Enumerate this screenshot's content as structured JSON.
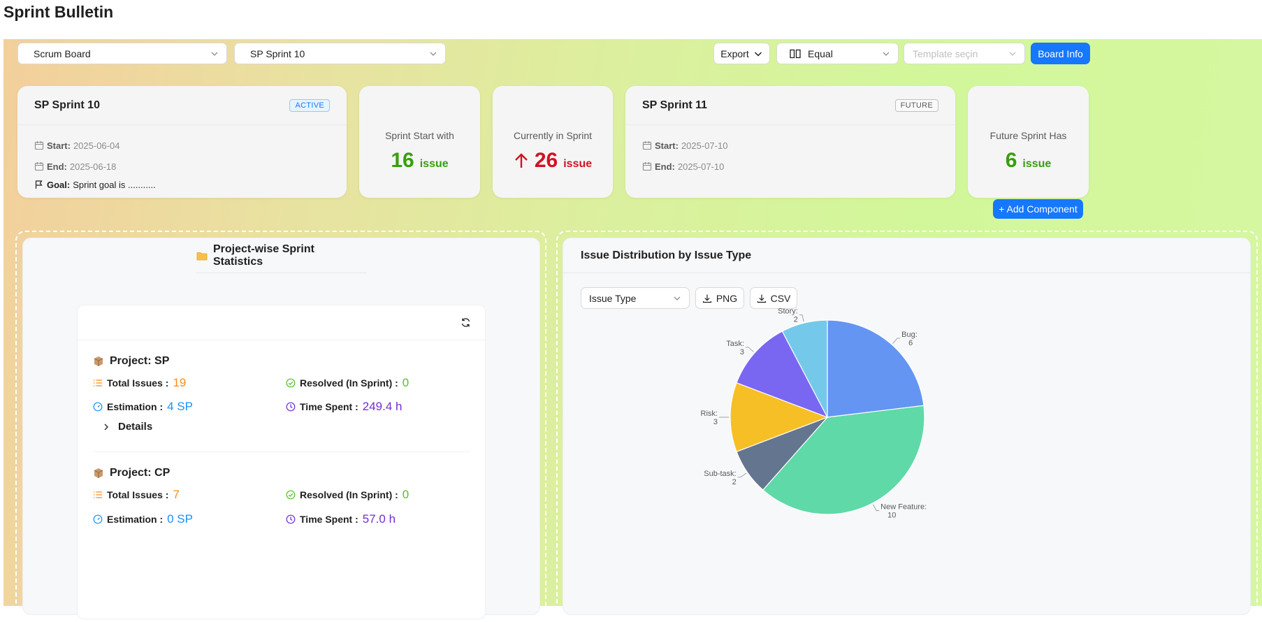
{
  "page": {
    "title": "Sprint Bulletin"
  },
  "toolbar": {
    "board_select": "Scrum Board",
    "sprint_select": "SP Sprint 10",
    "export_label": "Export",
    "layout_select": "Equal",
    "template_placeholder": "Template seçin",
    "board_info_label": "Board Info"
  },
  "active_sprint": {
    "name": "SP Sprint 10",
    "status": "ACTIVE",
    "start_label": "Start:",
    "start": "2025-06-04",
    "end_label": "End:",
    "end": "2025-06-18",
    "goal_label": "Goal:",
    "goal": "Sprint goal is ..........."
  },
  "stats": {
    "start_with": {
      "label": "Sprint Start with",
      "value": "16",
      "unit": "issue"
    },
    "currently": {
      "label": "Currently in Sprint",
      "value": "26",
      "unit": "issue"
    },
    "future_has": {
      "label": "Future Sprint Has",
      "value": "6",
      "unit": "issue"
    }
  },
  "future_sprint": {
    "name": "SP Sprint 11",
    "status": "FUTURE",
    "start_label": "Start:",
    "start": "2025-07-10",
    "end_label": "End:",
    "end": "2025-07-10"
  },
  "add_component_label": "+ Add Component",
  "project_stats": {
    "title": "Project-wise Sprint Statistics",
    "projects": [
      {
        "title": "Project: SP",
        "total_label": "Total Issues :",
        "total": "19",
        "resolved_label": "Resolved (In Sprint) :",
        "resolved": "0",
        "estimation_label": "Estimation :",
        "estimation": "4 SP",
        "time_label": "Time Spent :",
        "time": "249.4 h",
        "details_label": "Details"
      },
      {
        "title": "Project: CP",
        "total_label": "Total Issues :",
        "total": "7",
        "resolved_label": "Resolved (In Sprint) :",
        "resolved": "0",
        "estimation_label": "Estimation :",
        "estimation": "0 SP",
        "time_label": "Time Spent :",
        "time": "57.0 h"
      }
    ]
  },
  "issue_distribution": {
    "title": "Issue Distribution by Issue Type",
    "group_select": "Issue Type",
    "png_label": "PNG",
    "csv_label": "CSV"
  },
  "chart_data": {
    "type": "pie",
    "title": "Issue Distribution by Issue Type",
    "slices": [
      {
        "label": "Bug",
        "value": 6,
        "color": "#6495f3"
      },
      {
        "label": "New Feature",
        "value": 10,
        "color": "#5fd9a7"
      },
      {
        "label": "Sub-task",
        "value": 2,
        "color": "#64758f"
      },
      {
        "label": "Risk",
        "value": 3,
        "color": "#f6bf26"
      },
      {
        "label": "Task",
        "value": 3,
        "color": "#7967f2"
      },
      {
        "label": "Story",
        "value": 2,
        "color": "#74c9ea"
      }
    ]
  }
}
